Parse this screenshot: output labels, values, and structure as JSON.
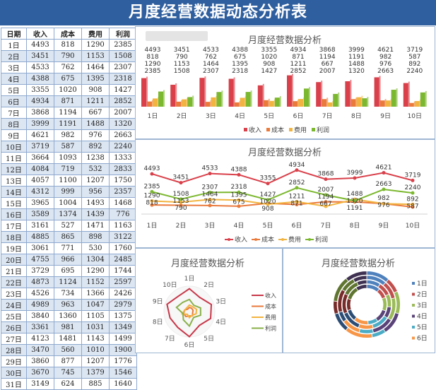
{
  "title": "月度经营数据动态分析表",
  "table": {
    "headers": [
      "日期",
      "收入",
      "成本",
      "费用",
      "利润"
    ],
    "rows": [
      [
        "1日",
        4493,
        818,
        1290,
        2385
      ],
      [
        "2日",
        3451,
        790,
        1153,
        1508
      ],
      [
        "3日",
        4533,
        762,
        1464,
        2307
      ],
      [
        "4日",
        4388,
        675,
        1395,
        2318
      ],
      [
        "5日",
        3355,
        1020,
        908,
        1427
      ],
      [
        "6日",
        4934,
        871,
        1211,
        2852
      ],
      [
        "7日",
        3868,
        1194,
        667,
        2007
      ],
      [
        "8日",
        3999,
        1191,
        1488,
        1320
      ],
      [
        "9日",
        4621,
        982,
        976,
        2663
      ],
      [
        "10日",
        3719,
        587,
        892,
        2240
      ],
      [
        "11日",
        3664,
        1093,
        1238,
        1333
      ],
      [
        "12日",
        4084,
        719,
        532,
        2833
      ],
      [
        "13日",
        4057,
        1100,
        1207,
        1750
      ],
      [
        "14日",
        4312,
        999,
        956,
        2357
      ],
      [
        "15日",
        3965,
        1004,
        1493,
        1468
      ],
      [
        "16日",
        3589,
        1374,
        1439,
        776
      ],
      [
        "17日",
        3161,
        527,
        1471,
        1163
      ],
      [
        "18日",
        4885,
        865,
        898,
        3122
      ],
      [
        "19日",
        3061,
        771,
        530,
        1760
      ],
      [
        "20日",
        4755,
        966,
        1304,
        2485
      ],
      [
        "21日",
        3729,
        695,
        1290,
        1744
      ],
      [
        "22日",
        4873,
        1124,
        1152,
        2597
      ],
      [
        "23日",
        4526,
        734,
        1366,
        2426
      ],
      [
        "24日",
        4989,
        963,
        1047,
        2979
      ],
      [
        "25日",
        3840,
        1360,
        1105,
        1375
      ],
      [
        "26日",
        3361,
        981,
        1031,
        1349
      ],
      [
        "27日",
        4123,
        1481,
        1143,
        1499
      ],
      [
        "28日",
        3470,
        560,
        1010,
        1900
      ],
      [
        "29日",
        3860,
        877,
        1207,
        1776
      ],
      [
        "30日",
        3670,
        745,
        1379,
        1546
      ],
      [
        "31日",
        3149,
        624,
        885,
        1640
      ]
    ]
  },
  "chart_data": [
    {
      "type": "bar",
      "title": "月度经营数据分析",
      "categories": [
        "1日",
        "2日",
        "3日",
        "4日",
        "5日",
        "6日",
        "7日",
        "8日",
        "9日",
        "10日"
      ],
      "series": [
        {
          "name": "收入",
          "color": "#d9404a",
          "values": [
            4493,
            3451,
            4533,
            4388,
            3355,
            4934,
            3868,
            3999,
            4621,
            3719
          ]
        },
        {
          "name": "成本",
          "color": "#ea7a3c",
          "values": [
            818,
            790,
            762,
            675,
            1020,
            871,
            1194,
            1191,
            982,
            587
          ]
        },
        {
          "name": "费用",
          "color": "#f2b440",
          "values": [
            1290,
            1153,
            1464,
            1395,
            908,
            1211,
            667,
            1488,
            976,
            892
          ]
        },
        {
          "name": "利润",
          "color": "#7cb82f",
          "values": [
            2385,
            1508,
            2307,
            2318,
            1427,
            2852,
            2007,
            1320,
            2663,
            2240
          ]
        }
      ],
      "legend": "bottom",
      "data_labels": true
    },
    {
      "type": "line",
      "title": "月度经营数据分析",
      "categories": [
        "1日",
        "2日",
        "3日",
        "4日",
        "5日",
        "6日",
        "7日",
        "8日",
        "9日",
        "10日"
      ],
      "series": [
        {
          "name": "收入",
          "color": "#d9404a",
          "values": [
            4493,
            3451,
            4533,
            4388,
            3355,
            4934,
            3868,
            3999,
            4621,
            3719
          ]
        },
        {
          "name": "成本",
          "color": "#ea7a3c",
          "values": [
            818,
            790,
            762,
            675,
            1020,
            871,
            1194,
            1191,
            982,
            587
          ]
        },
        {
          "name": "费用",
          "color": "#f2b440",
          "values": [
            1290,
            1153,
            1464,
            1395,
            908,
            1211,
            667,
            1488,
            976,
            892
          ]
        },
        {
          "name": "利润",
          "color": "#7cb82f",
          "values": [
            2385,
            1508,
            2307,
            2318,
            1427,
            2852,
            2007,
            1320,
            2663,
            2240
          ]
        }
      ],
      "legend": "bottom",
      "data_labels": true
    },
    {
      "type": "radar",
      "title": "月度经营数据分析",
      "categories": [
        "1日",
        "2日",
        "3日",
        "4日",
        "5日",
        "6日",
        "7日",
        "8日",
        "9日",
        "10日"
      ],
      "series": [
        {
          "name": "收入",
          "color": "#c8384a",
          "values": [
            4493,
            3451,
            4533,
            4388,
            3355,
            4934,
            3868,
            3999,
            4621,
            3719
          ]
        },
        {
          "name": "成本",
          "color": "#ea7a3c",
          "values": [
            818,
            790,
            762,
            675,
            1020,
            871,
            1194,
            1191,
            982,
            587
          ]
        },
        {
          "name": "费用",
          "color": "#f2b440",
          "values": [
            1290,
            1153,
            1464,
            1395,
            908,
            1211,
            667,
            1488,
            976,
            892
          ]
        },
        {
          "name": "利润",
          "color": "#8ab04a",
          "values": [
            2385,
            1508,
            2307,
            2318,
            1427,
            2852,
            2007,
            1320,
            2663,
            2240
          ]
        }
      ],
      "legend": "right"
    },
    {
      "type": "donut",
      "title": "月度经营数据分析",
      "categories": [
        "1日",
        "2日",
        "3日",
        "4日",
        "5日",
        "6日",
        "7日",
        "8日",
        "9日",
        "10日"
      ],
      "colors": [
        "#4f81bd",
        "#c0504d",
        "#9bbb59",
        "#5a4378",
        "#4bacc6",
        "#f79646",
        "#2c4d75",
        "#772c2a",
        "#5f7530",
        "#3f3151"
      ],
      "legend_visible": [
        "1日",
        "2日",
        "3日",
        "4日",
        "5日",
        "6日"
      ],
      "series": [
        {
          "name": "收入",
          "values": [
            4493,
            3451,
            4533,
            4388,
            3355,
            4934,
            3868,
            3999,
            4621,
            3719
          ]
        },
        {
          "name": "成本",
          "values": [
            818,
            790,
            762,
            675,
            1020,
            871,
            1194,
            1191,
            982,
            587
          ]
        },
        {
          "name": "费用",
          "values": [
            1290,
            1153,
            1464,
            1395,
            908,
            1211,
            667,
            1488,
            976,
            892
          ]
        },
        {
          "name": "利润",
          "values": [
            2385,
            1508,
            2307,
            2318,
            1427,
            2852,
            2007,
            1320,
            2663,
            2240
          ]
        }
      ],
      "legend": "right"
    }
  ]
}
